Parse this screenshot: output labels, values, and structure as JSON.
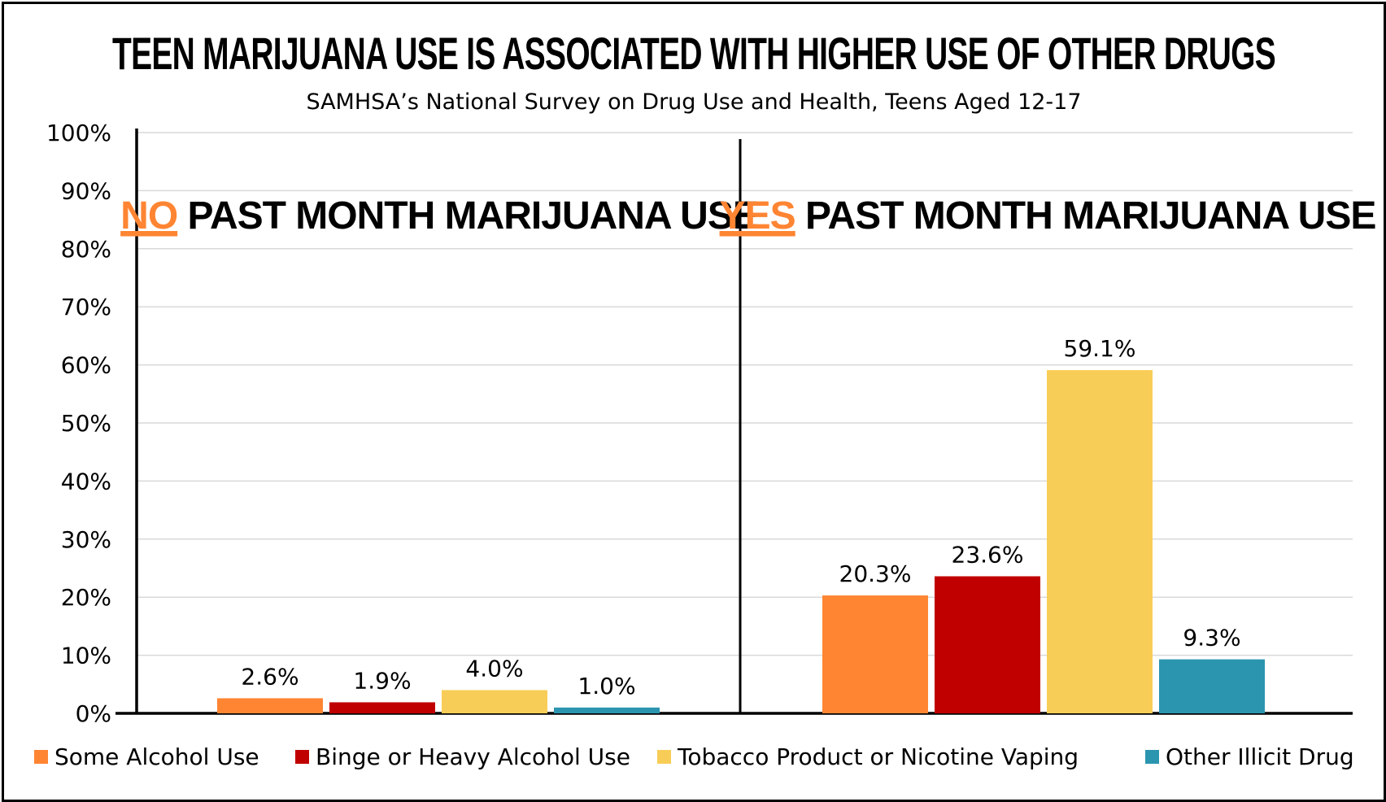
{
  "chart_data": {
    "type": "bar",
    "title": "TEEN MARIJUANA USE IS ASSOCIATED WITH HIGHER USE OF OTHER DRUGS",
    "subtitle": "SAMHSA’s National Survey on Drug Use and Health, Teens Aged 12-17",
    "ylim": [
      0,
      100
    ],
    "y_ticks": [
      "0%",
      "10%",
      "20%",
      "30%",
      "40%",
      "50%",
      "60%",
      "70%",
      "80%",
      "90%",
      "100%"
    ],
    "grid": true,
    "legend_position": "bottom",
    "series": [
      {
        "name": "Some Alcohol Use",
        "color": "#FF8533"
      },
      {
        "name": "Binge or Heavy Alcohol Use",
        "color": "#C00000"
      },
      {
        "name": "Tobacco Product or Nicotine Vaping",
        "color": "#F8CD57"
      },
      {
        "name": "Other Illicit Drug",
        "color": "#2B95B0"
      }
    ],
    "groups": [
      {
        "highlight": "NO",
        "title_rest": "PAST MONTH MARIJUANA USE",
        "values": [
          2.6,
          1.9,
          4.0,
          1.0
        ],
        "labels": [
          "2.6%",
          "1.9%",
          "4.0%",
          "1.0%"
        ]
      },
      {
        "highlight": "YES",
        "title_rest": "PAST MONTH MARIJUANA USE",
        "values": [
          20.3,
          23.6,
          59.1,
          9.3
        ],
        "labels": [
          "20.3%",
          "23.6%",
          "59.1%",
          "9.3%"
        ]
      }
    ],
    "highlight_color": "#FF8533"
  }
}
